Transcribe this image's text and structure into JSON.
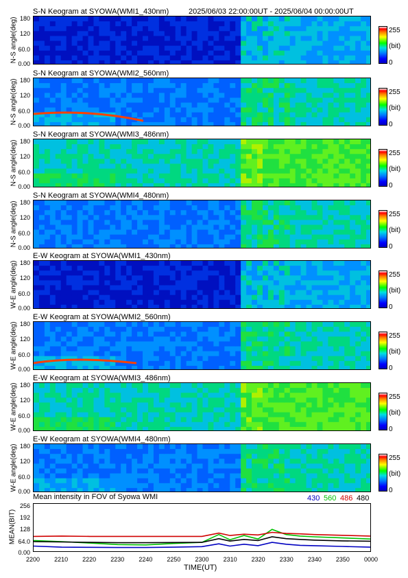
{
  "header": {
    "first_title": "S-N Keogram at SYOWA(WMI1_430nm)",
    "time_range": "2025/06/03 22:00:00UT - 2025/06/04 00:00:00UT"
  },
  "panels": [
    {
      "title": "S-N Keogram at SYOWA(WMI2_560nm)",
      "ylabel": "N-S angle(deg)"
    },
    {
      "title": "S-N Keogram at SYOWA(WMI3_486nm)",
      "ylabel": "N-S angle(deg)"
    },
    {
      "title": "S-N Keogram at SYOWA(WMI4_480nm)",
      "ylabel": "N-S angle(deg)"
    },
    {
      "title": "E-W Keogram at SYOWA(WMI1_430nm)",
      "ylabel": "W-E angle(deg)"
    },
    {
      "title": "E-W Keogram at SYOWA(WMI2_560nm)",
      "ylabel": "W-E angle(deg)"
    },
    {
      "title": "E-W Keogram at SYOWA(WMI3_486nm)",
      "ylabel": "W-E angle(deg)"
    },
    {
      "title": "E-W Keogram at SYOWA(WMI4_480nm)",
      "ylabel": "W-E angle(deg)"
    }
  ],
  "first_ylabel": "N-S angle(deg)",
  "yticks": [
    "180",
    "120",
    "60.0",
    "0.00"
  ],
  "colorbar": {
    "max": "255",
    "unit": "(bit)",
    "min": "0"
  },
  "mean": {
    "title": "Mean intensity in FOV of Syowa WMI",
    "ylabel": "MEAN(BIT)",
    "yticks": [
      "256",
      "192",
      "128",
      "64.0",
      "0.00"
    ],
    "legend": [
      {
        "label": "430",
        "color": "#0000c0"
      },
      {
        "label": "560",
        "color": "#00c000"
      },
      {
        "label": "486",
        "color": "#d00000"
      },
      {
        "label": "480",
        "color": "#000000"
      }
    ]
  },
  "xaxis": {
    "label": "TIME(UT)",
    "ticks": [
      "2200",
      "2210",
      "2220",
      "2230",
      "2240",
      "2250",
      "2300",
      "2310",
      "2320",
      "2330",
      "2340",
      "2350",
      "0000"
    ]
  },
  "chart_data": {
    "type": "line",
    "title": "Mean intensity in FOV of Syowa WMI",
    "xlabel": "TIME(UT)",
    "ylabel": "MEAN(BIT)",
    "ylim": [
      0,
      256
    ],
    "x": [
      0,
      10,
      20,
      30,
      40,
      50,
      60,
      66,
      70,
      75,
      80,
      85,
      90,
      95,
      100,
      110,
      120
    ],
    "x_units": "minutes after 2200 UT",
    "series": [
      {
        "name": "430",
        "values": [
          28,
          22,
          21,
          20,
          20,
          22,
          25,
          40,
          28,
          38,
          30,
          48,
          38,
          32,
          30,
          26,
          22
        ]
      },
      {
        "name": "560",
        "values": [
          58,
          52,
          44,
          36,
          34,
          42,
          48,
          90,
          62,
          85,
          66,
          118,
          90,
          82,
          78,
          72,
          66
        ]
      },
      {
        "name": "486",
        "values": [
          80,
          82,
          80,
          80,
          80,
          80,
          80,
          98,
          85,
          92,
          88,
          102,
          96,
          94,
          90,
          86,
          82
        ]
      },
      {
        "name": "480",
        "values": [
          52,
          50,
          48,
          46,
          46,
          47,
          48,
          68,
          55,
          64,
          58,
          78,
          68,
          64,
          60,
          56,
          54
        ]
      }
    ]
  }
}
